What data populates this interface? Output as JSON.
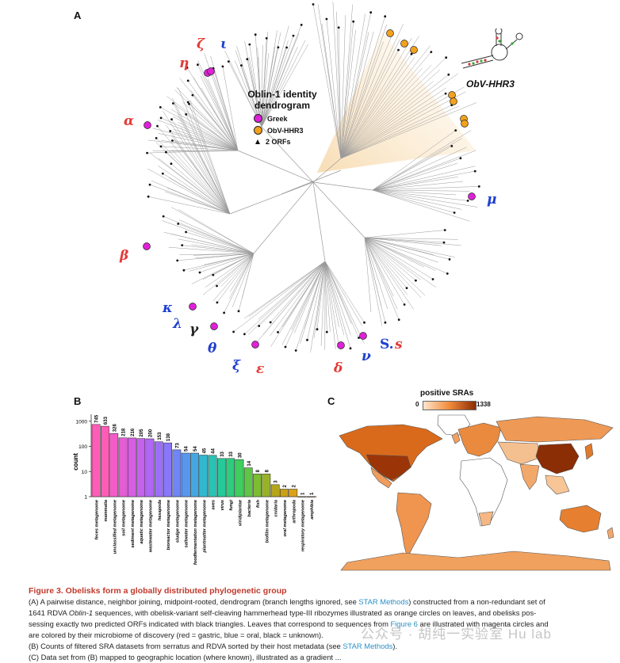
{
  "panels": {
    "a": "A",
    "b": "B",
    "c": "C"
  },
  "dendrogram": {
    "title_line1": "Oblin-1 identity",
    "title_line2": "dendrogram",
    "legend": [
      {
        "label": "Greek",
        "color": "#e020d8"
      },
      {
        "label": "ObV-HHR3",
        "color": "#f3a21c"
      },
      {
        "label": "2 ORFs",
        "color": "#111111"
      }
    ],
    "ribozyme_label": "ObV-HHR3",
    "greek_labels": [
      {
        "text": "η",
        "color": "red"
      },
      {
        "text": "ζ",
        "color": "red"
      },
      {
        "text": "ι",
        "color": "blue"
      },
      {
        "text": "α",
        "color": "red"
      },
      {
        "text": "β",
        "color": "red"
      },
      {
        "text": "μ",
        "color": "blue"
      },
      {
        "text": "κ",
        "color": "blue"
      },
      {
        "text": "λ",
        "color": "blue"
      },
      {
        "text": "γ",
        "color": "black"
      },
      {
        "text": "θ",
        "color": "blue"
      },
      {
        "text": "ξ",
        "color": "blue"
      },
      {
        "text": "ε",
        "color": "red"
      },
      {
        "text": "δ",
        "color": "red"
      },
      {
        "text": "ν",
        "color": "blue"
      },
      {
        "text": "S.",
        "color": "blue"
      },
      {
        "text": "s",
        "color": "red"
      }
    ]
  },
  "chart_data": [
    {
      "type": "bar",
      "ylabel": "count",
      "yscale": "log",
      "yticks": [
        "1000",
        "100",
        "10",
        "1"
      ],
      "categories": [
        "feces metagenome",
        "mammalia",
        "unclassified metagenome",
        "soil metagenome",
        "sediment metagenome",
        "aquatic metagenome",
        "wastewater metagenome",
        "hexapoda",
        "bioreactor metagenome",
        "sludge metagenome",
        "saltwater metagenome",
        "foodfermentation metagenome",
        "plantmatter metagenome",
        "aves",
        "virus",
        "fungi",
        "viridiplantae",
        "bacteria",
        "fish",
        "biofilm metagenome",
        "cnidaria",
        "oral metagenome",
        "arthropoda",
        "respiratory metagenome",
        "amphibia"
      ],
      "values": [
        745,
        633,
        326,
        218,
        216,
        205,
        200,
        153,
        138,
        73,
        54,
        54,
        45,
        44,
        33,
        33,
        30,
        14,
        8,
        8,
        3,
        2,
        2,
        1,
        1
      ],
      "colors": [
        "#ff5cb8",
        "#ff5cb8",
        "#f45bc8",
        "#e65bd6",
        "#d65ee2",
        "#c462ec",
        "#b067f3",
        "#9c6ff8",
        "#8977fb",
        "#6f86f7",
        "#5a96ee",
        "#45a7e0",
        "#33b7ce",
        "#28c3b5",
        "#25c99a",
        "#2ccd7d",
        "#40cd5f",
        "#5ec646",
        "#7cbd33",
        "#99b126",
        "#b4a51d",
        "#caa01a",
        "#dca119",
        "#e9a81c",
        "#f0b020"
      ]
    },
    {
      "type": "heatmap",
      "title": "positive SRAs",
      "range": [
        0,
        1338
      ],
      "range_labels": [
        "0",
        "1338"
      ],
      "colors": [
        "#fde5cc",
        "#8b2d05"
      ]
    }
  ],
  "caption": {
    "title": "Figure 3.  Obelisks form a globally distributed phylogenetic group",
    "line1a": "(A) A pairwise distance, neighbor joining, midpoint-rooted, dendrogram (branch lengths ignored, see ",
    "line1link": "STAR Methods",
    "line1b": ") constructed from a non-redundant set of",
    "line2a": "1641 RDVA ",
    "line2i": "Oblin-1",
    "line2b": " sequences, with obelisk-variant self-cleaving hammerhead type-III ribozymes illustrated as orange circles on leaves, and obelisks pos-",
    "line3a": "sessing exactly two predicted ORFs indicated with black triangles. Leaves that correspond to sequences from ",
    "line3link": "Figure 6",
    "line3b": " are illustrated with magenta circles and",
    "line4": "are colored by their microbiome of discovery (red = gastric, blue = oral, black = unknown).",
    "line5a": "(B) Counts of filtered SRA datasets from serratus and RDVA sorted by their host metadata (see ",
    "line5link": "STAR Methods",
    "line5b": ").",
    "line6": "(C) Data set from (B) mapped to geographic location (where known), illustrated as a gradient ..."
  },
  "watermark": "公众号 · 胡纯一实验室 Hu lab"
}
